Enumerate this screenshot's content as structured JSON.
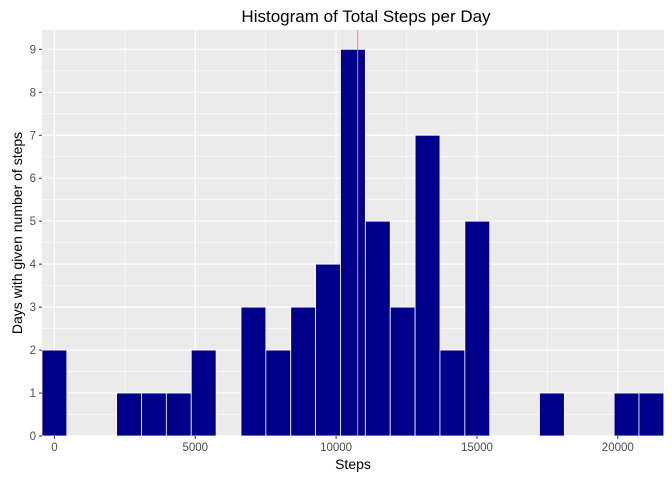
{
  "chart_data": {
    "type": "bar",
    "title": "Histogram of Total Steps per Day",
    "xlabel": "Steps",
    "ylabel": "Days with given number of steps",
    "xlim": [
      -440,
      21640
    ],
    "ylim": [
      0,
      9.45
    ],
    "bin_width": 883,
    "bins": [
      {
        "x": 0,
        "count": 2
      },
      {
        "x": 2650,
        "count": 1
      },
      {
        "x": 3533,
        "count": 1
      },
      {
        "x": 4416,
        "count": 1
      },
      {
        "x": 5299,
        "count": 2
      },
      {
        "x": 7065,
        "count": 3
      },
      {
        "x": 7948,
        "count": 2
      },
      {
        "x": 8831,
        "count": 3
      },
      {
        "x": 9714,
        "count": 4
      },
      {
        "x": 10597,
        "count": 9
      },
      {
        "x": 11480,
        "count": 5
      },
      {
        "x": 12363,
        "count": 3
      },
      {
        "x": 13246,
        "count": 7
      },
      {
        "x": 14129,
        "count": 2
      },
      {
        "x": 15012,
        "count": 5
      },
      {
        "x": 17661,
        "count": 1
      },
      {
        "x": 20310,
        "count": 1
      },
      {
        "x": 21193,
        "count": 1
      }
    ],
    "x_ticks": [
      0,
      5000,
      10000,
      15000,
      20000
    ],
    "x_tick_labels": [
      "0",
      "5000",
      "10000",
      "15000",
      "20000"
    ],
    "y_ticks": [
      0,
      1,
      2,
      3,
      4,
      5,
      6,
      7,
      8,
      9
    ],
    "y_tick_labels": [
      "0",
      "1",
      "2",
      "3",
      "4",
      "5",
      "6",
      "7",
      "8",
      "9"
    ],
    "reference_line": {
      "x": 10766,
      "color": "#f08080"
    },
    "bar_fill": "#00008b",
    "bar_outline": "#ffffff",
    "panel_background": "#ebebeb",
    "grid": true
  }
}
